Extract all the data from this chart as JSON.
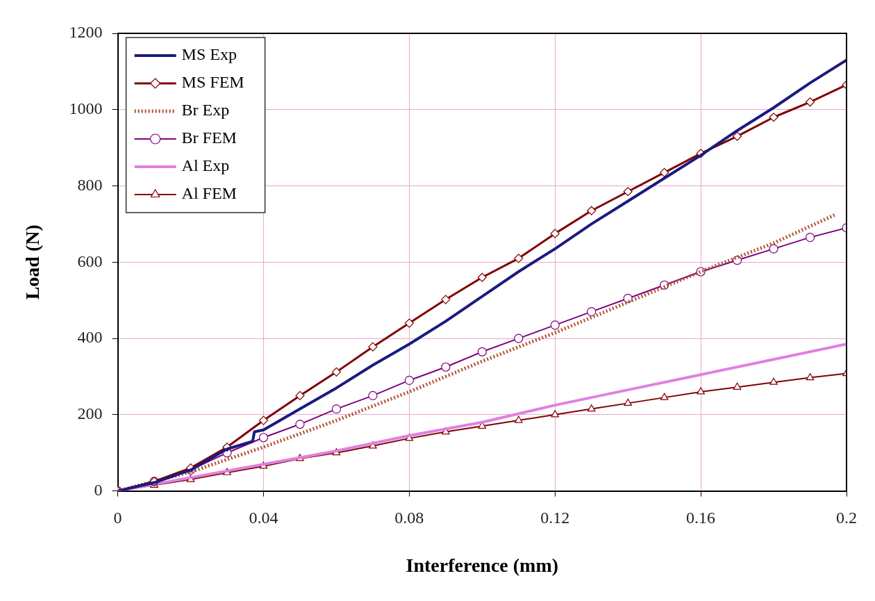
{
  "chart_data": {
    "type": "line",
    "xlabel": "Interference (mm)",
    "ylabel": "Load (N)",
    "xlim": [
      0,
      0.2
    ],
    "ylim": [
      0,
      1200
    ],
    "xticks": [
      0,
      0.04,
      0.08,
      0.12,
      0.16,
      0.2
    ],
    "yticks": [
      0,
      200,
      400,
      600,
      800,
      1000,
      1200
    ],
    "grid": true,
    "legend": "top left",
    "series": [
      {
        "name": "MS Exp",
        "color": "#1a1a80",
        "marker": "none",
        "x": [
          0,
          0.01,
          0.02,
          0.03,
          0.037,
          0.0375,
          0.04,
          0.05,
          0.06,
          0.07,
          0.08,
          0.09,
          0.1,
          0.11,
          0.12,
          0.13,
          0.14,
          0.15,
          0.16,
          0.17,
          0.18,
          0.19,
          0.2
        ],
        "values": [
          0,
          22,
          55,
          110,
          130,
          155,
          160,
          215,
          270,
          330,
          385,
          445,
          510,
          575,
          635,
          700,
          760,
          820,
          880,
          945,
          1005,
          1070,
          1130
        ]
      },
      {
        "name": "MS FEM",
        "color": "#800000",
        "marker": "diamond",
        "x": [
          0,
          0.01,
          0.02,
          0.03,
          0.04,
          0.05,
          0.06,
          0.07,
          0.08,
          0.09,
          0.1,
          0.11,
          0.12,
          0.13,
          0.14,
          0.15,
          0.16,
          0.17,
          0.18,
          0.19,
          0.2
        ],
        "values": [
          0,
          25,
          60,
          115,
          185,
          250,
          312,
          378,
          440,
          502,
          560,
          610,
          675,
          735,
          785,
          835,
          885,
          930,
          980,
          1020,
          1065
        ]
      },
      {
        "name": "Br Exp",
        "color": "#b05030",
        "marker": "none",
        "line_style": "dotted",
        "x": [
          0,
          0.02,
          0.04,
          0.06,
          0.08,
          0.1,
          0.12,
          0.14,
          0.16,
          0.18,
          0.197
        ],
        "values": [
          0,
          50,
          115,
          185,
          260,
          340,
          415,
          495,
          575,
          650,
          725
        ]
      },
      {
        "name": "Br FEM",
        "color": "#800080",
        "marker": "circle",
        "x": [
          0,
          0.01,
          0.02,
          0.03,
          0.04,
          0.05,
          0.06,
          0.07,
          0.08,
          0.09,
          0.1,
          0.11,
          0.12,
          0.13,
          0.14,
          0.15,
          0.16,
          0.17,
          0.18,
          0.19,
          0.2
        ],
        "values": [
          0,
          25,
          55,
          100,
          140,
          175,
          215,
          250,
          290,
          325,
          365,
          400,
          435,
          470,
          505,
          540,
          575,
          605,
          635,
          665,
          690
        ]
      },
      {
        "name": "Al Exp",
        "color": "#e080e0",
        "marker": "none",
        "x": [
          0,
          0.02,
          0.04,
          0.06,
          0.08,
          0.1,
          0.12,
          0.14,
          0.16,
          0.18,
          0.2
        ],
        "values": [
          0,
          35,
          70,
          105,
          145,
          180,
          225,
          265,
          305,
          345,
          385
        ]
      },
      {
        "name": "Al FEM",
        "color": "#800000",
        "marker": "triangle",
        "x": [
          0,
          0.01,
          0.02,
          0.03,
          0.04,
          0.05,
          0.06,
          0.07,
          0.08,
          0.09,
          0.1,
          0.11,
          0.12,
          0.13,
          0.14,
          0.15,
          0.16,
          0.17,
          0.18,
          0.19,
          0.2
        ],
        "values": [
          0,
          15,
          30,
          48,
          65,
          85,
          100,
          118,
          138,
          155,
          170,
          185,
          200,
          215,
          230,
          245,
          260,
          272,
          285,
          297,
          308
        ]
      }
    ]
  }
}
